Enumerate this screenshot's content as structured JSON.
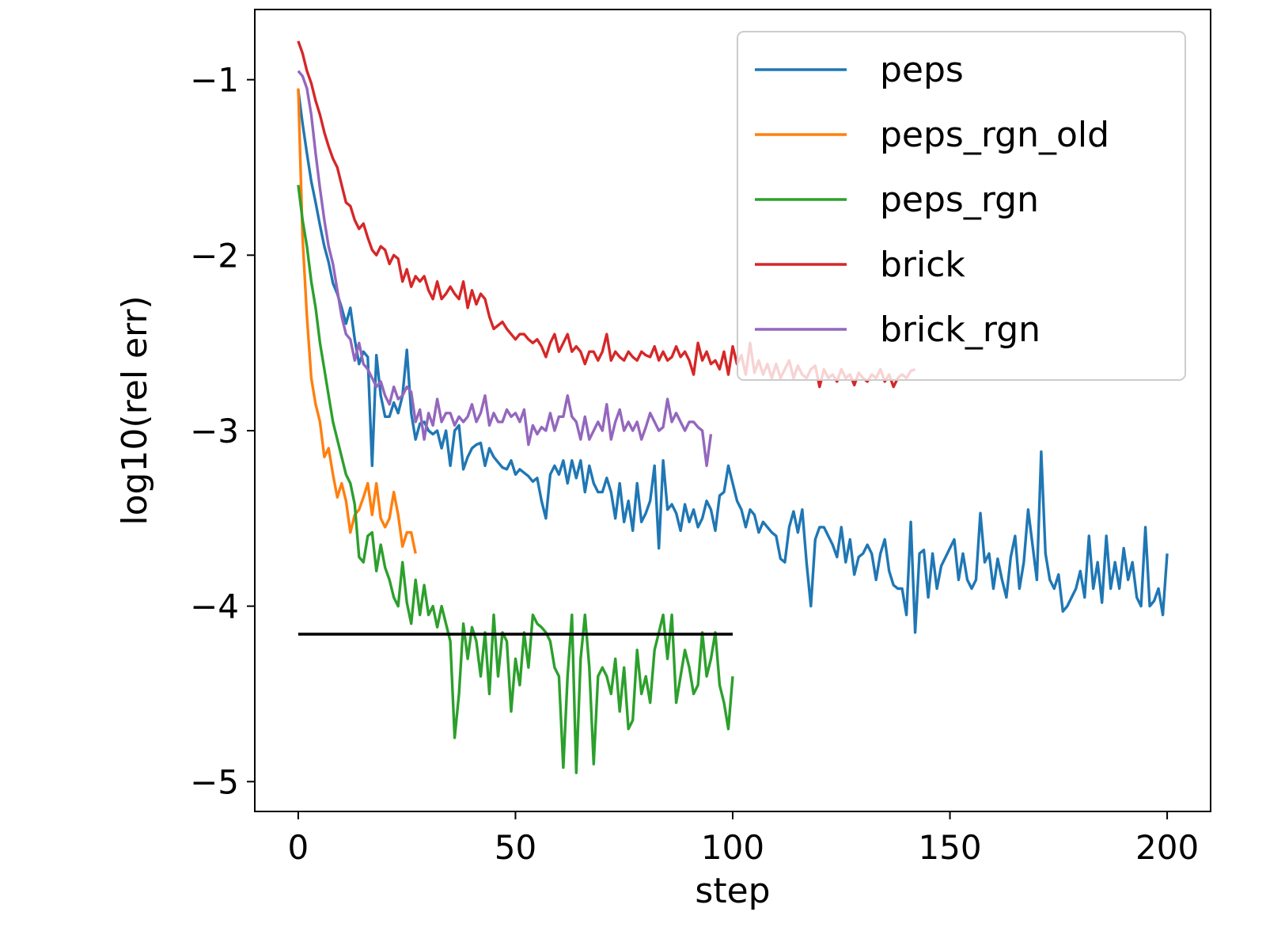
{
  "chart_data": {
    "type": "line",
    "title": "",
    "xlabel": "step",
    "ylabel": "log10(rel err)",
    "xlim": [
      -10,
      210
    ],
    "ylim": [
      -5.17,
      -0.6
    ],
    "xticks": [
      0,
      50,
      100,
      150,
      200
    ],
    "xtick_labels": [
      "0",
      "50",
      "100",
      "150",
      "200"
    ],
    "yticks": [
      -1,
      -2,
      -3,
      -4,
      -5
    ],
    "ytick_labels": [
      "−1",
      "−2",
      "−3",
      "−4",
      "−5"
    ],
    "grid": false,
    "legend_position": "top-right",
    "series": [
      {
        "name": "peps",
        "color": "#1f77b4",
        "x_start": 0,
        "x_step": 1,
        "values": [
          -1.06,
          -1.25,
          -1.42,
          -1.58,
          -1.7,
          -1.83,
          -1.95,
          -2.04,
          -2.16,
          -2.22,
          -2.3,
          -2.39,
          -2.3,
          -2.48,
          -2.62,
          -2.55,
          -2.58,
          -3.2,
          -2.57,
          -2.8,
          -2.92,
          -2.92,
          -2.84,
          -2.9,
          -2.8,
          -2.54,
          -2.9,
          -3.05,
          -2.96,
          -2.95,
          -3.0,
          -3.02,
          -3.0,
          -3.1,
          -3.0,
          -3.2,
          -3.0,
          -2.97,
          -3.22,
          -3.15,
          -3.1,
          -3.08,
          -3.07,
          -3.2,
          -3.1,
          -3.15,
          -3.18,
          -3.21,
          -3.22,
          -3.17,
          -3.25,
          -3.22,
          -3.24,
          -3.26,
          -3.29,
          -3.27,
          -3.4,
          -3.5,
          -3.25,
          -3.2,
          -3.25,
          -3.17,
          -3.3,
          -3.17,
          -3.27,
          -3.17,
          -3.35,
          -3.2,
          -3.3,
          -3.35,
          -3.35,
          -3.27,
          -3.35,
          -3.5,
          -3.3,
          -3.52,
          -3.4,
          -3.57,
          -3.3,
          -3.52,
          -3.47,
          -3.4,
          -3.2,
          -3.67,
          -3.17,
          -3.45,
          -3.42,
          -3.47,
          -3.57,
          -3.42,
          -3.52,
          -3.45,
          -3.55,
          -3.5,
          -3.4,
          -3.45,
          -3.57,
          -3.37,
          -3.35,
          -3.2,
          -3.3,
          -3.4,
          -3.45,
          -3.55,
          -3.45,
          -3.48,
          -3.58,
          -3.52,
          -3.55,
          -3.58,
          -3.6,
          -3.73,
          -3.75,
          -3.55,
          -3.46,
          -3.58,
          -3.45,
          -3.75,
          -4.0,
          -3.62,
          -3.55,
          -3.55,
          -3.6,
          -3.65,
          -3.72,
          -3.55,
          -3.75,
          -3.62,
          -3.82,
          -3.72,
          -3.7,
          -3.65,
          -3.7,
          -3.85,
          -3.7,
          -3.62,
          -3.8,
          -3.88,
          -3.9,
          -3.9,
          -4.05,
          -3.52,
          -4.15,
          -3.7,
          -3.68,
          -3.95,
          -3.7,
          -3.9,
          -3.77,
          -3.72,
          -3.67,
          -3.62,
          -3.85,
          -3.7,
          -3.85,
          -3.9,
          -3.85,
          -3.47,
          -3.75,
          -3.7,
          -3.9,
          -3.73,
          -3.85,
          -3.95,
          -3.72,
          -3.6,
          -3.9,
          -3.75,
          -3.45,
          -3.65,
          -3.85,
          -3.12,
          -3.7,
          -3.85,
          -3.9,
          -3.82,
          -4.03,
          -4.0,
          -3.95,
          -3.9,
          -3.8,
          -3.95,
          -3.6,
          -3.9,
          -3.75,
          -3.98,
          -3.6,
          -3.9,
          -3.75,
          -3.9,
          -3.67,
          -3.85,
          -3.75,
          -3.95,
          -4.0,
          -3.55,
          -4.0,
          -3.97,
          -3.9,
          -4.05,
          -3.7
        ]
      },
      {
        "name": "peps_rgn_old",
        "color": "#ff7f0e",
        "x_start": 0,
        "x_step": 1,
        "values": [
          -1.05,
          -1.9,
          -2.35,
          -2.7,
          -2.85,
          -2.95,
          -3.15,
          -3.1,
          -3.25,
          -3.38,
          -3.3,
          -3.4,
          -3.58,
          -3.48,
          -3.45,
          -3.38,
          -3.3,
          -3.48,
          -3.3,
          -3.5,
          -3.55,
          -3.5,
          -3.35,
          -3.48,
          -3.66,
          -3.58,
          -3.58,
          -3.7
        ]
      },
      {
        "name": "peps_rgn",
        "color": "#2ca02c",
        "x_start": 0,
        "x_step": 1,
        "values": [
          -1.6,
          -1.8,
          -1.95,
          -2.15,
          -2.3,
          -2.5,
          -2.65,
          -2.8,
          -2.95,
          -3.05,
          -3.15,
          -3.25,
          -3.3,
          -3.42,
          -3.72,
          -3.75,
          -3.6,
          -3.58,
          -3.8,
          -3.65,
          -3.78,
          -3.85,
          -3.95,
          -4.0,
          -3.75,
          -3.98,
          -4.1,
          -3.85,
          -4.05,
          -3.88,
          -4.05,
          -4.0,
          -4.12,
          -4.0,
          -4.1,
          -4.2,
          -4.75,
          -4.5,
          -4.1,
          -4.3,
          -4.12,
          -4.2,
          -4.4,
          -4.15,
          -4.5,
          -4.05,
          -4.4,
          -4.15,
          -4.2,
          -4.6,
          -4.3,
          -4.45,
          -4.15,
          -4.35,
          -4.05,
          -4.1,
          -4.12,
          -4.15,
          -4.2,
          -4.35,
          -4.4,
          -4.92,
          -4.4,
          -4.05,
          -4.95,
          -4.3,
          -4.05,
          -4.35,
          -4.9,
          -4.4,
          -4.35,
          -4.4,
          -4.5,
          -4.3,
          -4.6,
          -4.35,
          -4.7,
          -4.65,
          -4.25,
          -4.5,
          -4.4,
          -4.55,
          -4.25,
          -4.15,
          -4.05,
          -4.3,
          -4.05,
          -4.55,
          -4.4,
          -4.25,
          -4.35,
          -4.5,
          -4.45,
          -4.15,
          -4.4,
          -4.3,
          -4.15,
          -4.45,
          -4.55,
          -4.7,
          -4.4
        ]
      },
      {
        "name": "brick",
        "color": "#d62728",
        "x_start": 0,
        "x_step": 1,
        "values": [
          -0.78,
          -0.85,
          -0.95,
          -1.02,
          -1.12,
          -1.2,
          -1.3,
          -1.38,
          -1.45,
          -1.5,
          -1.6,
          -1.7,
          -1.72,
          -1.8,
          -1.85,
          -1.82,
          -1.9,
          -1.97,
          -2.0,
          -1.95,
          -1.97,
          -2.05,
          -2.0,
          -2.02,
          -2.15,
          -2.08,
          -2.18,
          -2.12,
          -2.15,
          -2.12,
          -2.2,
          -2.25,
          -2.15,
          -2.25,
          -2.22,
          -2.18,
          -2.22,
          -2.25,
          -2.15,
          -2.3,
          -2.2,
          -2.28,
          -2.22,
          -2.25,
          -2.35,
          -2.42,
          -2.4,
          -2.38,
          -2.42,
          -2.45,
          -2.48,
          -2.45,
          -2.45,
          -2.48,
          -2.5,
          -2.48,
          -2.52,
          -2.58,
          -2.5,
          -2.45,
          -2.55,
          -2.5,
          -2.45,
          -2.55,
          -2.52,
          -2.55,
          -2.62,
          -2.55,
          -2.55,
          -2.6,
          -2.55,
          -2.45,
          -2.6,
          -2.55,
          -2.58,
          -2.6,
          -2.55,
          -2.58,
          -2.6,
          -2.55,
          -2.57,
          -2.58,
          -2.52,
          -2.6,
          -2.55,
          -2.6,
          -2.58,
          -2.52,
          -2.58,
          -2.55,
          -2.6,
          -2.68,
          -2.5,
          -2.6,
          -2.55,
          -2.62,
          -2.6,
          -2.65,
          -2.55,
          -2.68,
          -2.52,
          -2.62,
          -2.57,
          -2.68,
          -2.5,
          -2.67,
          -2.6,
          -2.68,
          -2.62,
          -2.7,
          -2.62,
          -2.7,
          -2.65,
          -2.6,
          -2.7,
          -2.63,
          -2.68,
          -2.7,
          -2.65,
          -2.63,
          -2.75,
          -2.65,
          -2.7,
          -2.68,
          -2.72,
          -2.65,
          -2.7,
          -2.68,
          -2.74,
          -2.67,
          -2.7,
          -2.72,
          -2.68,
          -2.7,
          -2.65,
          -2.72,
          -2.68,
          -2.75,
          -2.7,
          -2.68,
          -2.7,
          -2.66,
          -2.65
        ]
      },
      {
        "name": "brick_rgn",
        "color": "#9467bd",
        "x_start": 0,
        "x_step": 1,
        "values": [
          -0.95,
          -0.98,
          -1.05,
          -1.2,
          -1.42,
          -1.62,
          -1.8,
          -1.95,
          -2.05,
          -2.2,
          -2.35,
          -2.45,
          -2.48,
          -2.6,
          -2.5,
          -2.62,
          -2.65,
          -2.7,
          -2.75,
          -2.72,
          -2.8,
          -2.85,
          -2.75,
          -2.82,
          -2.8,
          -2.75,
          -2.78,
          -2.95,
          -2.88,
          -3.05,
          -2.9,
          -2.97,
          -2.82,
          -2.95,
          -2.9,
          -2.9,
          -2.97,
          -2.92,
          -2.95,
          -2.92,
          -2.85,
          -2.95,
          -2.9,
          -2.8,
          -2.97,
          -2.9,
          -2.95,
          -2.95,
          -2.88,
          -2.92,
          -2.9,
          -2.95,
          -2.88,
          -3.08,
          -2.97,
          -3.02,
          -2.98,
          -3.0,
          -2.9,
          -3.0,
          -2.92,
          -2.92,
          -2.8,
          -2.92,
          -2.95,
          -3.05,
          -2.92,
          -3.05,
          -3.0,
          -2.95,
          -3.0,
          -2.85,
          -3.05,
          -2.95,
          -2.88,
          -3.0,
          -2.95,
          -3.0,
          -2.95,
          -3.05,
          -2.98,
          -2.9,
          -2.95,
          -3.0,
          -2.98,
          -2.82,
          -2.95,
          -2.9,
          -2.95,
          -3.0,
          -2.95,
          -2.95,
          -2.98,
          -3.0,
          -3.2,
          -3.02
        ]
      },
      {
        "name": "",
        "color": "#000000",
        "x": [
          0,
          100
        ],
        "values": [
          -4.16,
          -4.16
        ]
      }
    ]
  }
}
